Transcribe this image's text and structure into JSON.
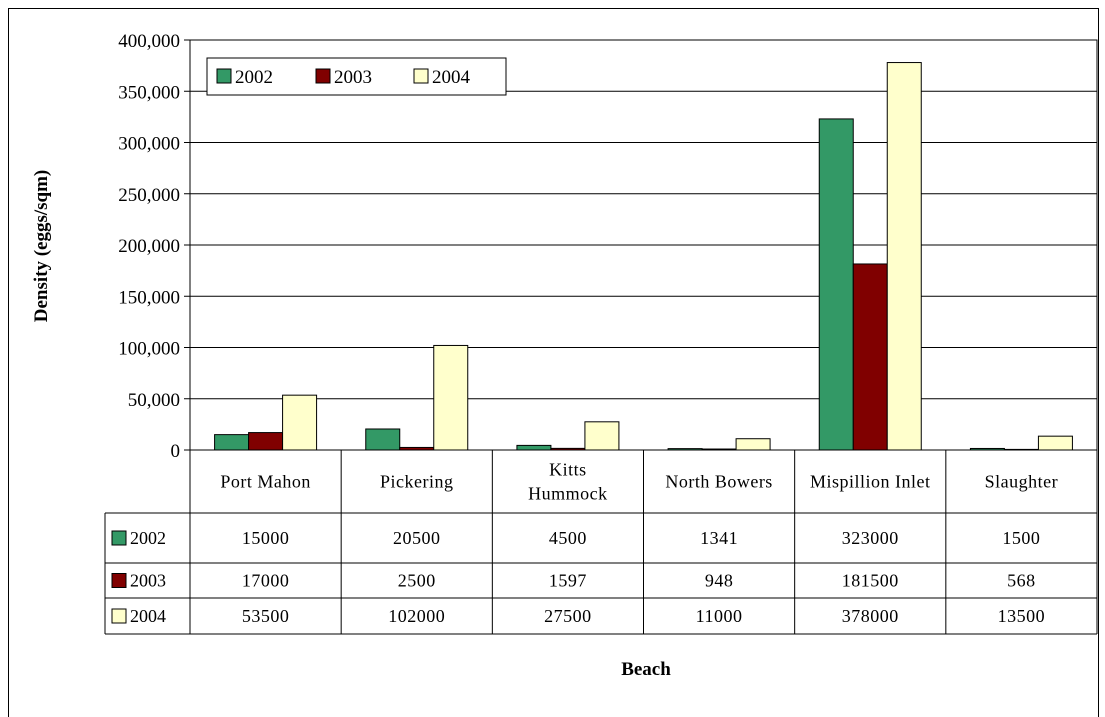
{
  "chart_data": {
    "type": "bar",
    "title": "",
    "xlabel": "Beach",
    "ylabel": "Density (eggs/sqm)",
    "ylim": [
      0,
      400000
    ],
    "yticks": [
      "0",
      "50,000",
      "100,000",
      "150,000",
      "200,000",
      "250,000",
      "300,000",
      "350,000",
      "400,000"
    ],
    "grid": true,
    "legend_position": "top-left",
    "categories": [
      "Port Mahon",
      "Pickering",
      "Kitts Hummock",
      "North Bowers",
      "Mispillion Inlet",
      "Slaughter"
    ],
    "category_lines": [
      [
        "Port Mahon"
      ],
      [
        "Pickering"
      ],
      [
        "Kitts",
        "Hummock"
      ],
      [
        "North Bowers"
      ],
      [
        "Mispillion Inlet"
      ],
      [
        "Slaughter"
      ]
    ],
    "series": [
      {
        "name": "2002",
        "color": "#339966",
        "values": [
          15000,
          20500,
          4500,
          1341,
          323000,
          1500
        ]
      },
      {
        "name": "2003",
        "color": "#800000",
        "values": [
          17000,
          2500,
          1597,
          948,
          181500,
          568
        ]
      },
      {
        "name": "2004",
        "color": "#FFFFCC",
        "values": [
          53500,
          102000,
          27500,
          11000,
          378000,
          13500
        ]
      }
    ]
  }
}
